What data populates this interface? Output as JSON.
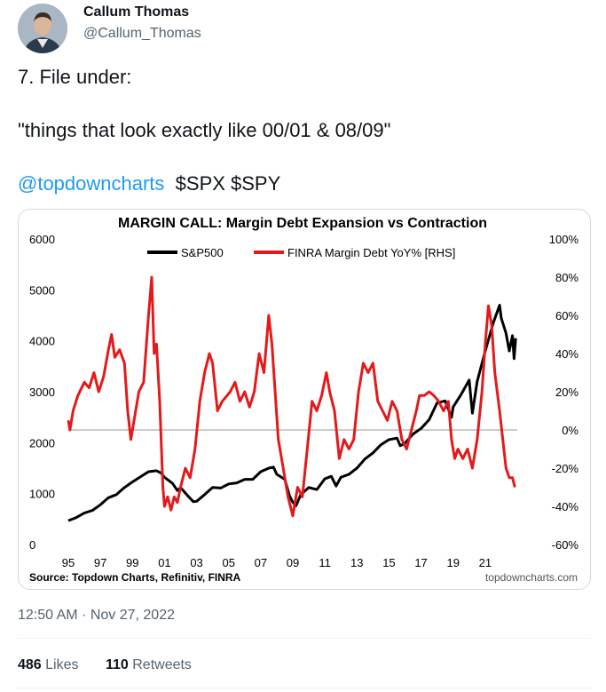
{
  "author": {
    "name": "Callum Thomas",
    "handle": "@Callum_Thomas"
  },
  "tweet": {
    "line1": "7. File under:",
    "line2": "\"things that look exactly like 00/01 & 08/09\"",
    "mention": "@topdowncharts",
    "cashtags": "$SPX $SPY",
    "timestamp": "12:50 AM · Nov 27, 2022",
    "likes_count": "486",
    "likes_label": "Likes",
    "retweets_count": "110",
    "retweets_label": "Retweets"
  },
  "chart_data": {
    "type": "line",
    "title": "MARGIN CALL: Margin Debt Expansion vs Contraction",
    "source": "Source: Topdown Charts, Refinitiv, FINRA",
    "watermark": "topdowncharts.com",
    "legend_position": "top-center",
    "grid": false,
    "x_ticks": [
      "95",
      "97",
      "99",
      "01",
      "03",
      "05",
      "07",
      "09",
      "11",
      "13",
      "15",
      "17",
      "19",
      "21"
    ],
    "xlim": [
      1995,
      2023
    ],
    "y_left": {
      "ylim": [
        0,
        6000
      ],
      "ticks": [
        "0",
        "1000",
        "2000",
        "3000",
        "4000",
        "5000",
        "6000"
      ]
    },
    "y_right": {
      "ylim": [
        -60,
        100
      ],
      "ticks": [
        "-60%",
        "-40%",
        "-20%",
        "0%",
        "20%",
        "40%",
        "60%",
        "80%",
        "100%"
      ]
    },
    "zero_line_right": 0,
    "series": [
      {
        "name": "S&P500",
        "axis": "left",
        "color": "#000000",
        "points": [
          [
            1995.0,
            470
          ],
          [
            1995.5,
            530
          ],
          [
            1996.0,
            620
          ],
          [
            1996.5,
            670
          ],
          [
            1997.0,
            780
          ],
          [
            1997.5,
            920
          ],
          [
            1998.0,
            980
          ],
          [
            1998.5,
            1120
          ],
          [
            1999.0,
            1230
          ],
          [
            1999.5,
            1330
          ],
          [
            2000.0,
            1430
          ],
          [
            2000.5,
            1450
          ],
          [
            2000.8,
            1400
          ],
          [
            2001.0,
            1320
          ],
          [
            2001.5,
            1200
          ],
          [
            2001.8,
            1060
          ],
          [
            2002.0,
            1120
          ],
          [
            2002.5,
            940
          ],
          [
            2002.8,
            840
          ],
          [
            2003.0,
            850
          ],
          [
            2003.5,
            980
          ],
          [
            2004.0,
            1120
          ],
          [
            2004.5,
            1110
          ],
          [
            2005.0,
            1190
          ],
          [
            2005.5,
            1210
          ],
          [
            2006.0,
            1280
          ],
          [
            2006.5,
            1280
          ],
          [
            2007.0,
            1430
          ],
          [
            2007.5,
            1500
          ],
          [
            2007.8,
            1520
          ],
          [
            2008.0,
            1380
          ],
          [
            2008.5,
            1280
          ],
          [
            2008.8,
            950
          ],
          [
            2009.0,
            830
          ],
          [
            2009.2,
            760
          ],
          [
            2009.5,
            980
          ],
          [
            2010.0,
            1120
          ],
          [
            2010.5,
            1080
          ],
          [
            2011.0,
            1290
          ],
          [
            2011.4,
            1340
          ],
          [
            2011.7,
            1150
          ],
          [
            2012.0,
            1320
          ],
          [
            2012.5,
            1380
          ],
          [
            2013.0,
            1500
          ],
          [
            2013.5,
            1680
          ],
          [
            2014.0,
            1800
          ],
          [
            2014.5,
            1960
          ],
          [
            2015.0,
            2060
          ],
          [
            2015.5,
            2090
          ],
          [
            2015.7,
            1940
          ],
          [
            2016.0,
            1990
          ],
          [
            2016.5,
            2170
          ],
          [
            2017.0,
            2280
          ],
          [
            2017.5,
            2450
          ],
          [
            2018.0,
            2780
          ],
          [
            2018.5,
            2820
          ],
          [
            2018.9,
            2500
          ],
          [
            2019.0,
            2700
          ],
          [
            2019.5,
            2950
          ],
          [
            2020.0,
            3230
          ],
          [
            2020.2,
            2580
          ],
          [
            2020.5,
            3200
          ],
          [
            2021.0,
            3800
          ],
          [
            2021.5,
            4350
          ],
          [
            2021.9,
            4700
          ],
          [
            2022.0,
            4450
          ],
          [
            2022.3,
            4150
          ],
          [
            2022.5,
            3800
          ],
          [
            2022.7,
            4100
          ],
          [
            2022.8,
            3650
          ],
          [
            2022.9,
            4050
          ]
        ]
      },
      {
        "name": "FINRA Margin Debt YoY% [RHS]",
        "axis": "right",
        "color": "#e31a1c",
        "points": [
          [
            1995.0,
            5
          ],
          [
            1995.1,
            0
          ],
          [
            1995.3,
            10
          ],
          [
            1995.6,
            18
          ],
          [
            1996.0,
            25
          ],
          [
            1996.3,
            22
          ],
          [
            1996.6,
            30
          ],
          [
            1996.9,
            20
          ],
          [
            1997.2,
            28
          ],
          [
            1997.5,
            42
          ],
          [
            1997.7,
            50
          ],
          [
            1997.9,
            38
          ],
          [
            1998.2,
            42
          ],
          [
            1998.5,
            35
          ],
          [
            1998.7,
            10
          ],
          [
            1998.9,
            -5
          ],
          [
            1999.1,
            5
          ],
          [
            1999.4,
            20
          ],
          [
            1999.7,
            25
          ],
          [
            2000.0,
            60
          ],
          [
            2000.2,
            80
          ],
          [
            2000.35,
            40
          ],
          [
            2000.5,
            45
          ],
          [
            2000.7,
            15
          ],
          [
            2000.9,
            -30
          ],
          [
            2001.0,
            -40
          ],
          [
            2001.2,
            -35
          ],
          [
            2001.4,
            -42
          ],
          [
            2001.6,
            -35
          ],
          [
            2001.8,
            -38
          ],
          [
            2002.0,
            -30
          ],
          [
            2002.3,
            -20
          ],
          [
            2002.6,
            -25
          ],
          [
            2002.9,
            -10
          ],
          [
            2003.2,
            15
          ],
          [
            2003.5,
            30
          ],
          [
            2003.8,
            40
          ],
          [
            2004.0,
            35
          ],
          [
            2004.3,
            10
          ],
          [
            2004.6,
            15
          ],
          [
            2004.9,
            18
          ],
          [
            2005.1,
            20
          ],
          [
            2005.4,
            25
          ],
          [
            2005.7,
            15
          ],
          [
            2006.0,
            20
          ],
          [
            2006.3,
            12
          ],
          [
            2006.6,
            20
          ],
          [
            2006.9,
            40
          ],
          [
            2007.2,
            30
          ],
          [
            2007.5,
            60
          ],
          [
            2007.7,
            45
          ],
          [
            2007.9,
            20
          ],
          [
            2008.1,
            -5
          ],
          [
            2008.4,
            -20
          ],
          [
            2008.7,
            -35
          ],
          [
            2009.0,
            -45
          ],
          [
            2009.3,
            -30
          ],
          [
            2009.6,
            -35
          ],
          [
            2009.9,
            -10
          ],
          [
            2010.2,
            15
          ],
          [
            2010.5,
            10
          ],
          [
            2010.8,
            18
          ],
          [
            2011.1,
            30
          ],
          [
            2011.3,
            20
          ],
          [
            2011.6,
            10
          ],
          [
            2011.9,
            -15
          ],
          [
            2012.2,
            -5
          ],
          [
            2012.5,
            -10
          ],
          [
            2012.8,
            -5
          ],
          [
            2013.1,
            20
          ],
          [
            2013.4,
            35
          ],
          [
            2013.7,
            30
          ],
          [
            2014.0,
            35
          ],
          [
            2014.3,
            15
          ],
          [
            2014.6,
            10
          ],
          [
            2014.9,
            5
          ],
          [
            2015.2,
            15
          ],
          [
            2015.5,
            10
          ],
          [
            2015.8,
            -5
          ],
          [
            2016.1,
            -10
          ],
          [
            2016.4,
            0
          ],
          [
            2016.7,
            10
          ],
          [
            2016.9,
            18
          ],
          [
            2017.2,
            18
          ],
          [
            2017.5,
            20
          ],
          [
            2017.8,
            18
          ],
          [
            2018.1,
            15
          ],
          [
            2018.4,
            10
          ],
          [
            2018.7,
            15
          ],
          [
            2018.9,
            -5
          ],
          [
            2019.1,
            -15
          ],
          [
            2019.3,
            -10
          ],
          [
            2019.6,
            -15
          ],
          [
            2019.9,
            -10
          ],
          [
            2020.2,
            -20
          ],
          [
            2020.5,
            -5
          ],
          [
            2020.8,
            20
          ],
          [
            2021.0,
            45
          ],
          [
            2021.2,
            65
          ],
          [
            2021.4,
            55
          ],
          [
            2021.6,
            30
          ],
          [
            2021.9,
            10
          ],
          [
            2022.1,
            -5
          ],
          [
            2022.3,
            -20
          ],
          [
            2022.5,
            -25
          ],
          [
            2022.7,
            -25
          ],
          [
            2022.85,
            -30
          ]
        ]
      }
    ]
  }
}
